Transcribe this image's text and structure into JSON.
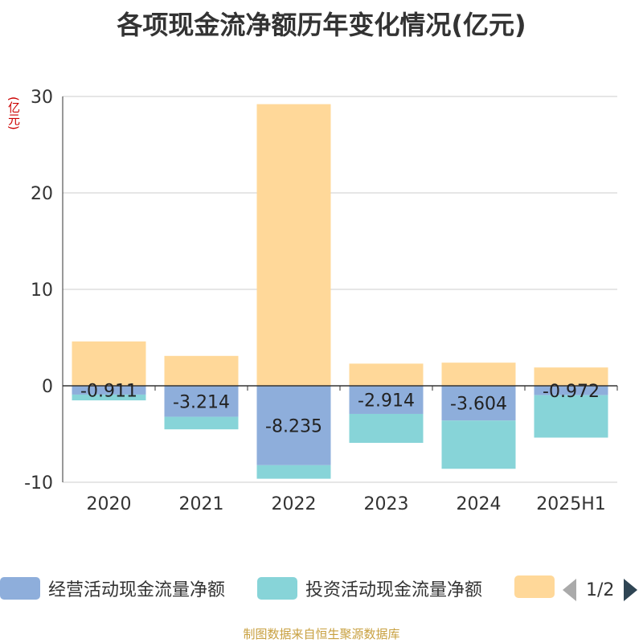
{
  "title": "各项现金流净额历年变化情况(亿元)",
  "unit_label": "(亿元)",
  "source": "制图数据来自恒生聚源数据库",
  "legend": {
    "items": [
      {
        "label": "经营活动现金流量净额",
        "color": "#8eaedb"
      },
      {
        "label": "投资活动现金流量净额",
        "color": "#87d4d8"
      },
      {
        "label": "",
        "color": "#ffd899"
      }
    ],
    "pager": "1/2"
  },
  "chart_data": {
    "type": "bar",
    "stacked": true,
    "categories": [
      "2020",
      "2021",
      "2022",
      "2023",
      "2024",
      "2025H1"
    ],
    "ylim": [
      -10,
      30
    ],
    "yticks": [
      -10,
      0,
      10,
      20,
      30
    ],
    "series": [
      {
        "name": "经营活动现金流量净额",
        "color": "#8eaedb",
        "values": [
          -0.911,
          -3.214,
          -8.235,
          -2.914,
          -3.604,
          -0.972
        ],
        "labels": [
          "-0.911",
          "-3.214",
          "-8.235",
          "-2.914",
          "-3.604",
          "-0.972"
        ]
      },
      {
        "name": "投资活动现金流量净额",
        "color": "#87d4d8",
        "values": [
          -0.6,
          -1.3,
          -1.4,
          -3.0,
          -5.0,
          -4.4
        ]
      },
      {
        "color": "#ffd899",
        "values": [
          4.6,
          3.1,
          29.2,
          2.3,
          2.4,
          1.9
        ]
      }
    ]
  }
}
